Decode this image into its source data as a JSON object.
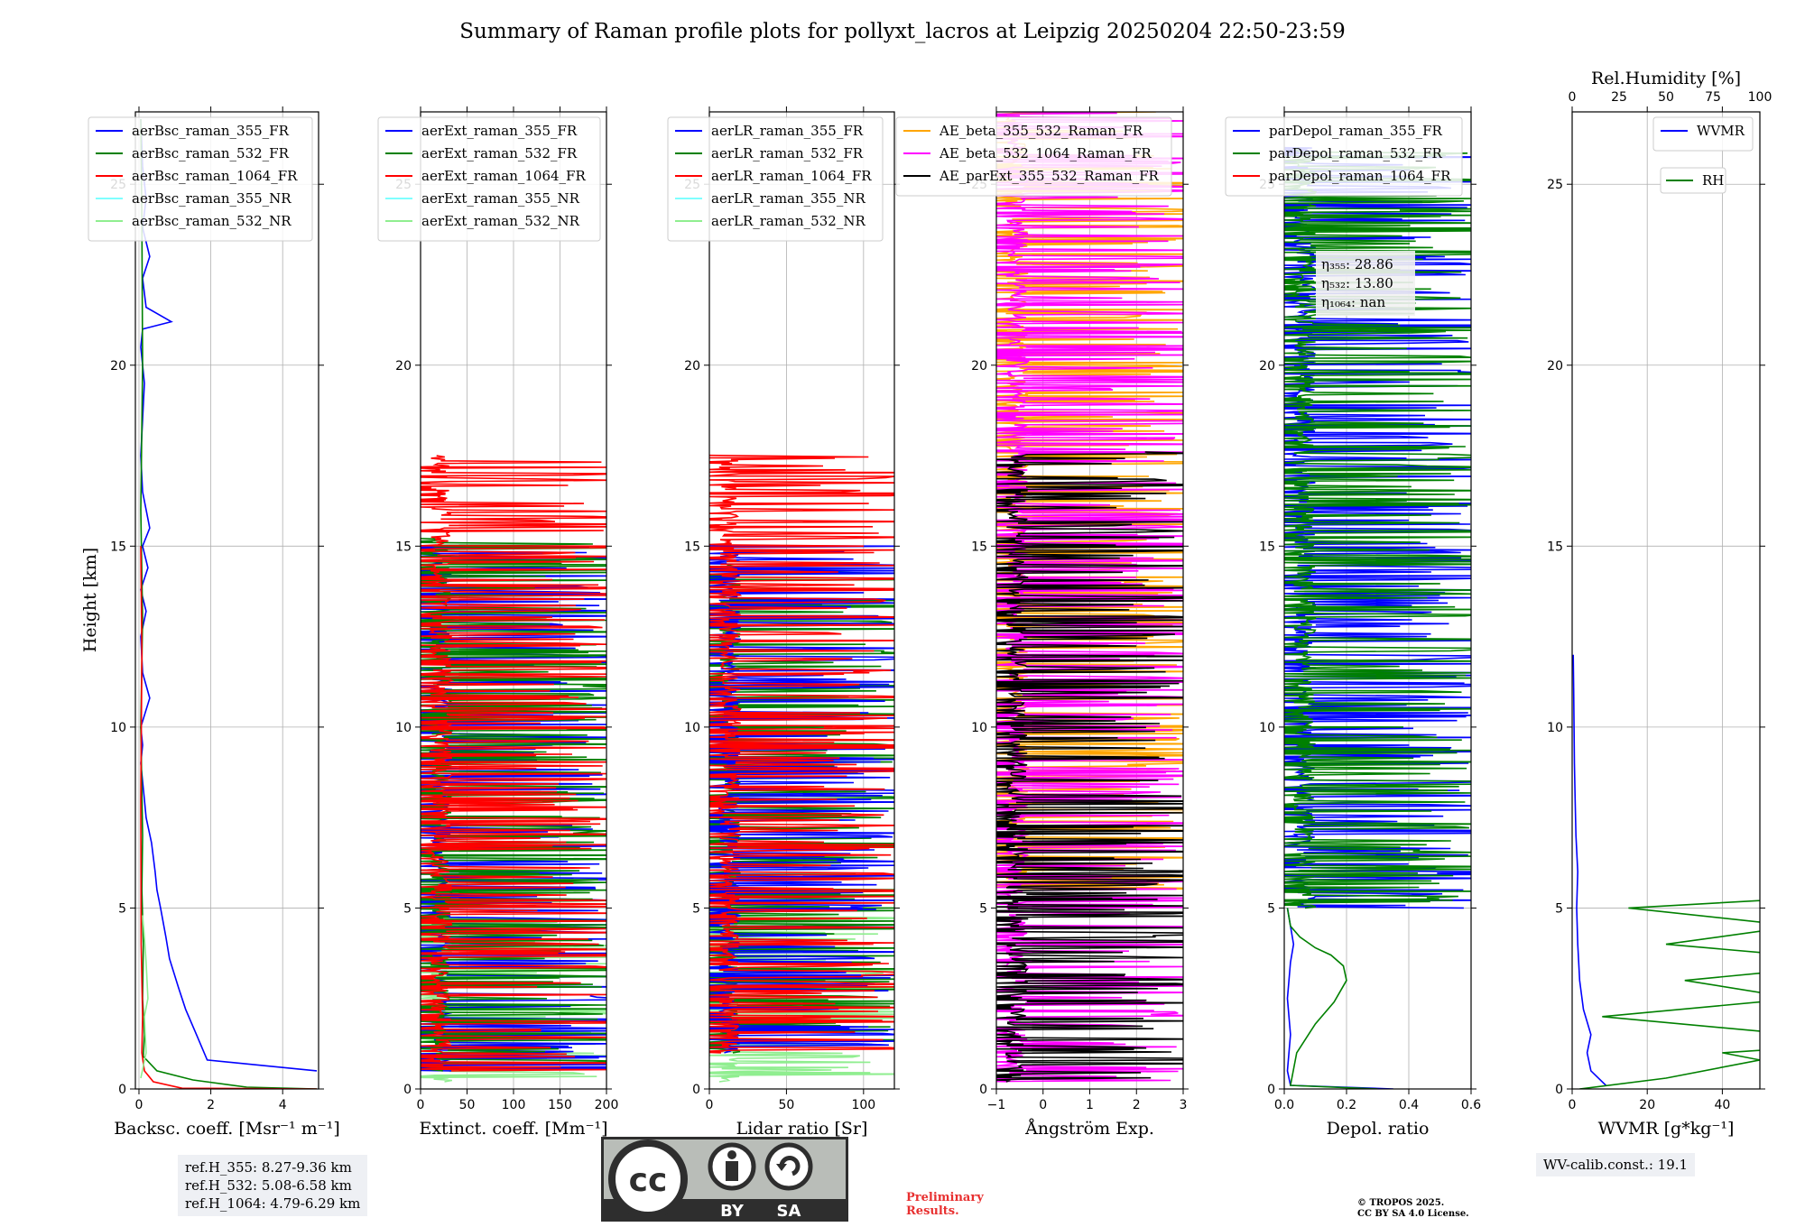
{
  "title": "Summary of Raman profile plots for pollyxt_lacros at Leipzig 20250204 22:50-23:59",
  "ylabel": "Height [km]",
  "ref_lines": [
    "ref.H_355: 8.27-9.36 km",
    "ref.H_532: 5.08-6.58 km",
    "ref.H_1064: 4.79-6.29 km"
  ],
  "wv_calib": "WV-calib.const.: 19.1",
  "preliminary": [
    "Preliminary",
    "Results."
  ],
  "copyright": [
    "© TROPOS 2025.",
    "CC BY SA 4.0 License."
  ],
  "license_logo": {
    "by": "BY",
    "sa": "SA",
    "cc": "cc"
  },
  "eta_labels": {
    "eta355": "η₃₅₅: 28.86",
    "eta532": "η₅₃₂: 13.80",
    "eta1064": "η₁₀₆₄: nan"
  },
  "colors": {
    "blue": "#0000ff",
    "green": "#008000",
    "red": "#ff0000",
    "cyan": "#7fffff",
    "lightgreen": "#90ee90",
    "orange": "#ffa500",
    "magenta": "#ff00ff",
    "black": "#000000"
  },
  "chart_data": [
    {
      "type": "line",
      "xlabel": "Backsc. coeff. [Msr⁻¹ m⁻¹]",
      "ylabel": "Height [km]",
      "xlim": [
        -0.1,
        5
      ],
      "ylim": [
        0,
        27
      ],
      "xticks": [
        0,
        2,
        4
      ],
      "yticks": [
        0,
        5,
        10,
        15,
        20,
        25
      ],
      "legend": [
        "aerBsc_raman_355_FR",
        "aerBsc_raman_532_FR",
        "aerBsc_raman_1064_FR",
        "aerBsc_raman_355_NR",
        "aerBsc_raman_532_NR"
      ],
      "series": [
        {
          "name": "aerBsc_raman_355_FR",
          "color": "blue",
          "x": [
            4.95,
            1.9,
            1.6,
            1.3,
            1.1,
            0.85,
            0.75,
            0.6,
            0.5,
            0.45,
            0.35,
            0.2,
            0.15,
            0.1,
            0.05,
            0.1,
            0.05,
            0.3,
            0.1,
            0.05,
            0.2,
            0.05,
            0.25,
            0.1,
            0.3,
            0.1,
            0.05,
            0.1,
            0.15,
            0.05,
            0.1,
            0.9,
            0.2,
            0.1,
            0.3,
            0.1,
            0.2,
            0.1,
            0.05
          ],
          "y": [
            0.5,
            0.8,
            1.5,
            2.2,
            2.8,
            3.6,
            4.2,
            5.0,
            5.5,
            6.0,
            6.8,
            7.5,
            8.0,
            8.5,
            9.0,
            9.5,
            10.0,
            10.8,
            11.5,
            12.5,
            13.2,
            13.8,
            14.4,
            15.0,
            15.5,
            16.5,
            17.5,
            18.5,
            19.5,
            20.5,
            21.0,
            21.2,
            21.6,
            22.4,
            23.0,
            23.8,
            24.6,
            25.5,
            26.8
          ]
        },
        {
          "name": "aerBsc_raman_532_FR",
          "color": "green",
          "x": [
            4.95,
            3.0,
            1.5,
            0.5,
            0.12,
            0.15,
            0.1,
            0.12,
            0.08,
            0.1,
            0.05,
            0.1,
            0.05,
            0.1,
            0.08,
            0.05
          ],
          "y": [
            0.0,
            0.05,
            0.25,
            0.5,
            0.9,
            1.5,
            2.5,
            4.0,
            5.5,
            7.0,
            10.0,
            13.0,
            16.0,
            20.0,
            24.0,
            26.8
          ]
        },
        {
          "name": "aerBsc_raman_1064_FR",
          "color": "red",
          "x": [
            4.95,
            1.2,
            0.4,
            0.15,
            0.08,
            0.1,
            0.06,
            0.05,
            0.08,
            0.05
          ],
          "y": [
            0.0,
            0.02,
            0.2,
            0.5,
            1.0,
            2.0,
            4.0,
            8.0,
            12.0,
            15.0
          ]
        },
        {
          "name": "aerBsc_raman_532_NR",
          "color": "lightgreen",
          "x": [
            0.05,
            0.2,
            0.15,
            0.25,
            0.2,
            0.15,
            0.1
          ],
          "y": [
            0.3,
            1.0,
            2.0,
            2.5,
            3.5,
            4.2,
            4.8
          ]
        }
      ]
    },
    {
      "type": "line",
      "xlabel": "Extinct. coeff. [Mm⁻¹]",
      "xlim": [
        0,
        200
      ],
      "ylim": [
        0,
        27
      ],
      "xticks": [
        0,
        50,
        100,
        150,
        200
      ],
      "yticks": [
        0,
        5,
        10,
        15,
        20,
        25
      ],
      "legend": [
        "aerExt_raman_355_FR",
        "aerExt_raman_532_FR",
        "aerExt_raman_1064_FR",
        "aerExt_raman_355_NR",
        "aerExt_raman_532_NR"
      ],
      "noisy_profiles": [
        {
          "name": "aerExt_raman_532_NR",
          "color": "lightgreen",
          "y_range": [
            0.2,
            5.0
          ],
          "spikes_to": 200
        },
        {
          "name": "aerExt_raman_355_FR",
          "color": "blue",
          "y_range": [
            0.5,
            15.0
          ],
          "spikes_to": 200
        },
        {
          "name": "aerExt_raman_532_FR",
          "color": "green",
          "y_range": [
            0.5,
            15.2
          ],
          "spikes_to": 200
        },
        {
          "name": "aerExt_raman_1064_FR",
          "color": "red",
          "y_range": [
            0.5,
            17.5
          ],
          "spikes_to": 200
        }
      ]
    },
    {
      "type": "line",
      "xlabel": "Lidar ratio [Sr]",
      "xlim": [
        0,
        120
      ],
      "ylim": [
        0,
        27
      ],
      "xticks": [
        0,
        50,
        100
      ],
      "yticks": [
        0,
        5,
        10,
        15,
        20,
        25
      ],
      "legend": [
        "aerLR_raman_355_FR",
        "aerLR_raman_532_FR",
        "aerLR_raman_1064_FR",
        "aerLR_raman_355_NR",
        "aerLR_raman_532_NR"
      ],
      "noisy_profiles": [
        {
          "name": "aerLR_raman_532_NR",
          "color": "lightgreen",
          "y_range": [
            0.2,
            5.0
          ],
          "spikes_to": 120
        },
        {
          "name": "aerLR_raman_532_FR",
          "color": "green",
          "y_range": [
            1.0,
            14.5
          ],
          "spikes_to": 120
        },
        {
          "name": "aerLR_raman_355_FR",
          "color": "blue",
          "y_range": [
            1.0,
            15.0
          ],
          "spikes_to": 120
        },
        {
          "name": "aerLR_raman_1064_FR",
          "color": "red",
          "y_range": [
            1.0,
            17.5
          ],
          "spikes_to": 120
        }
      ]
    },
    {
      "type": "line",
      "xlabel": "Ångström Exp.",
      "xlim": [
        -1,
        3
      ],
      "ylim": [
        0,
        27
      ],
      "xticks": [
        -1,
        0,
        1,
        2,
        3
      ],
      "yticks": [
        0,
        5,
        10,
        15,
        20,
        25
      ],
      "legend": [
        "AE_beta_355_532_Raman_FR",
        "AE_beta_532_1064_Raman_FR",
        "AE_parExt_355_532_Raman_FR"
      ],
      "noisy_profiles": [
        {
          "name": "AE_beta_355_532_Raman_FR",
          "color": "orange",
          "y_range": [
            5.5,
            27
          ],
          "spikes_to": 3
        },
        {
          "name": "AE_beta_532_1064_Raman_FR",
          "color": "magenta",
          "y_range": [
            0.2,
            27
          ],
          "spikes_to": 3
        },
        {
          "name": "AE_parExt_355_532_Raman_FR",
          "color": "black",
          "y_range": [
            0.2,
            17.6
          ],
          "spikes_to": 3
        }
      ]
    },
    {
      "type": "line",
      "xlabel": "Depol. ratio",
      "xlim": [
        0,
        0.6
      ],
      "ylim": [
        0,
        27
      ],
      "xticks": [
        0.0,
        0.2,
        0.4,
        0.6
      ],
      "yticks": [
        0,
        5,
        10,
        15,
        20,
        25
      ],
      "legend": [
        "parDepol_raman_355_FR",
        "parDepol_raman_532_FR",
        "parDepol_raman_1064_FR"
      ],
      "series": [
        {
          "name": "parDepol_raman_355_FR",
          "color": "blue",
          "x": [
            0.35,
            0.02,
            0.01,
            0.02,
            0.01,
            0.02,
            0.03,
            0.02,
            0.01
          ],
          "y": [
            0.0,
            0.1,
            0.5,
            1.5,
            2.5,
            3.5,
            4.0,
            4.5,
            5.0
          ]
        },
        {
          "name": "parDepol_raman_532_FR",
          "color": "green",
          "x": [
            0.3,
            0.02,
            0.04,
            0.1,
            0.16,
            0.2,
            0.19,
            0.15,
            0.1,
            0.05,
            0.02,
            0.01
          ],
          "y": [
            0.0,
            0.1,
            1.0,
            1.8,
            2.4,
            3.0,
            3.4,
            3.7,
            3.9,
            4.2,
            4.5,
            5.0
          ]
        }
      ],
      "noisy_profiles": [
        {
          "name": "parDepol_raman_355_FR",
          "color": "blue",
          "y_range": [
            5.0,
            26
          ],
          "spikes_to": 0.6
        },
        {
          "name": "parDepol_raman_532_FR",
          "color": "green",
          "y_range": [
            5.0,
            26
          ],
          "spikes_to": 0.6
        }
      ]
    },
    {
      "type": "line",
      "xlabel": "WVMR [g*kg⁻¹]",
      "x2label": "Rel.Humidity [%]",
      "xlim": [
        0,
        50
      ],
      "x2lim": [
        0,
        100
      ],
      "ylim": [
        0,
        27
      ],
      "xticks": [
        0,
        20,
        40
      ],
      "x2ticks": [
        0,
        25,
        50,
        75,
        100
      ],
      "yticks": [
        0,
        5,
        10,
        15,
        20,
        25
      ],
      "legend": [
        "WVMR",
        "RH"
      ],
      "series": [
        {
          "name": "WVMR",
          "color": "blue",
          "x": [
            9,
            5,
            4,
            5,
            3,
            2,
            1.5,
            1.2,
            1.5,
            1.0,
            0.8,
            0.6,
            0.5,
            0.4,
            0.3
          ],
          "y": [
            0.1,
            0.5,
            1.0,
            1.5,
            2.2,
            3.0,
            4.0,
            5.0,
            6.0,
            7.0,
            8.0,
            9.0,
            10.0,
            11.0,
            12.0
          ]
        },
        {
          "name": "RH",
          "color": "green",
          "x": [
            2,
            25,
            50,
            40,
            70,
            60,
            8,
            60,
            30,
            80,
            25,
            60,
            15,
            100,
            60,
            100,
            85,
            100,
            70
          ],
          "y": [
            0.0,
            0.3,
            0.8,
            1.0,
            1.2,
            1.5,
            2.0,
            2.5,
            3.0,
            3.5,
            4.0,
            4.5,
            5.0,
            5.5,
            6.0,
            6.5,
            6.8,
            7.0,
            7.2
          ]
        }
      ]
    }
  ]
}
